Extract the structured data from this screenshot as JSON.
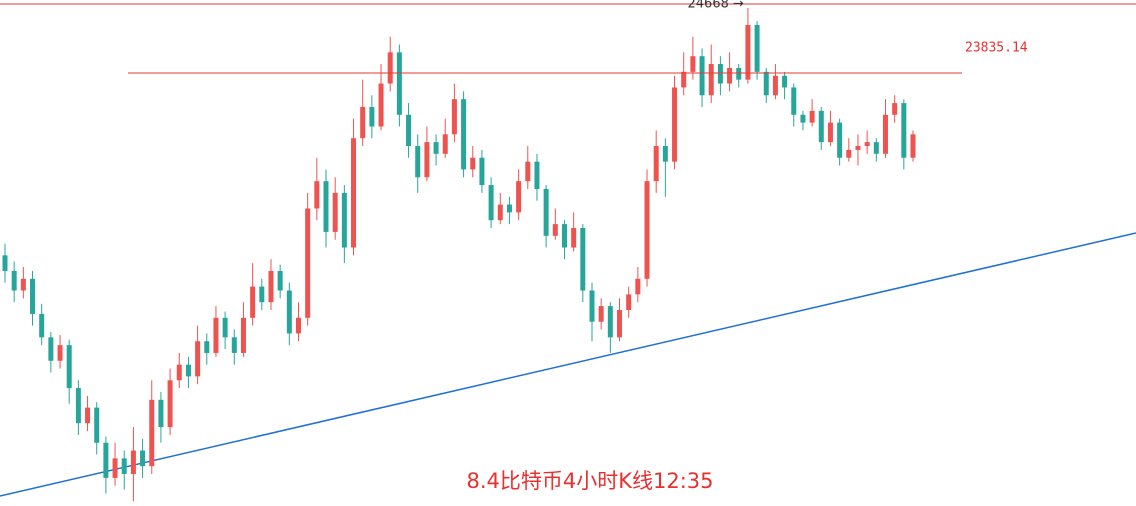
{
  "chart_data": {
    "type": "candlestick",
    "title": "8.4比特币4小时K线12:35",
    "ylim": [
      18290,
      24770
    ],
    "up_color": "#ef5350",
    "down_color": "#26a69a",
    "hline": {
      "value": 23835.14,
      "color": "#e53935"
    },
    "high_annotation": "24668 →",
    "open": [
      21500,
      21300,
      21050,
      21200,
      20750,
      20450,
      20150,
      20350,
      19800,
      19350,
      19550,
      19100,
      18650,
      18900,
      18700,
      19000,
      18800,
      19650,
      19300,
      19900,
      20100,
      19950,
      20400,
      20250,
      20700,
      20450,
      20250,
      20700,
      21100,
      20900,
      21300,
      21050,
      20500,
      20700,
      22100,
      22450,
      21800,
      22300,
      21600,
      23000,
      23400,
      23150,
      23700,
      24100,
      23300,
      22900,
      22500,
      22950,
      22800,
      23050,
      23500,
      22600,
      22750,
      22400,
      21950,
      22150,
      22050,
      22450,
      22700,
      22350,
      21750,
      21900,
      21600,
      21850,
      21050,
      20650,
      20850,
      20450,
      20800,
      21000,
      21200,
      22450,
      22900,
      22700,
      23650,
      23850,
      24050,
      23550,
      23950,
      23700,
      23900,
      23750,
      24450,
      23850,
      23550,
      23800,
      23650,
      23300,
      23200,
      23350,
      22950,
      23200,
      22750,
      22850,
      22900,
      22950,
      22800,
      23300,
      23450,
      22750
    ],
    "high": [
      21650,
      21420,
      21350,
      21300,
      20880,
      20520,
      20480,
      20420,
      19900,
      19700,
      19620,
      19180,
      19100,
      19000,
      19300,
      19150,
      19900,
      19750,
      20050,
      20250,
      20200,
      20600,
      20500,
      20850,
      20780,
      20550,
      20900,
      21400,
      21200,
      21450,
      21380,
      21150,
      20900,
      22300,
      22750,
      22600,
      22500,
      22400,
      23250,
      23750,
      23550,
      23950,
      24300,
      24200,
      23450,
      23050,
      23150,
      23050,
      23250,
      23700,
      23600,
      22900,
      22850,
      22500,
      22300,
      22250,
      22600,
      22900,
      22800,
      22400,
      22100,
      21950,
      22050,
      21900,
      21150,
      20950,
      20900,
      20950,
      21100,
      21350,
      22600,
      23100,
      23000,
      23800,
      24100,
      24300,
      24150,
      24200,
      24050,
      24100,
      23950,
      24668,
      24500,
      23900,
      23950,
      23850,
      23700,
      23350,
      23500,
      23400,
      23350,
      23250,
      23000,
      23050,
      23100,
      23000,
      23500,
      23550,
      23500,
      23100
    ],
    "low": [
      21150,
      20900,
      20950,
      20600,
      20350,
      20000,
      20050,
      19600,
      19200,
      19250,
      18950,
      18450,
      18550,
      18500,
      18350,
      18650,
      18700,
      19100,
      19200,
      19800,
      19800,
      19850,
      20100,
      20200,
      20300,
      20100,
      20200,
      20600,
      20800,
      20800,
      20950,
      20350,
      20400,
      20600,
      21950,
      21600,
      21700,
      21400,
      21500,
      22900,
      23000,
      23100,
      23600,
      23150,
      22750,
      22300,
      22450,
      22650,
      22750,
      22950,
      22500,
      22500,
      22300,
      21850,
      21900,
      21900,
      21950,
      22350,
      22200,
      21600,
      21700,
      21450,
      21550,
      20900,
      20400,
      20550,
      20250,
      20400,
      20700,
      20900,
      21100,
      22300,
      22250,
      22600,
      23550,
      23750,
      23400,
      23450,
      23550,
      23600,
      23650,
      23700,
      23750,
      23450,
      23500,
      23500,
      23150,
      23100,
      23150,
      22850,
      22900,
      22650,
      22700,
      22650,
      22800,
      22700,
      22750,
      23200,
      22600,
      22700
    ],
    "close": [
      21300,
      21050,
      21200,
      20750,
      20450,
      20150,
      20350,
      19800,
      19350,
      19550,
      19100,
      18650,
      18900,
      18700,
      19000,
      18800,
      19650,
      19300,
      19900,
      20100,
      19950,
      20400,
      20250,
      20700,
      20450,
      20250,
      20700,
      21100,
      20900,
      21300,
      21050,
      20500,
      20700,
      22100,
      22450,
      21800,
      22300,
      21600,
      23000,
      23400,
      23150,
      23700,
      24100,
      23300,
      22900,
      22500,
      22950,
      22800,
      23050,
      23500,
      22600,
      22750,
      22400,
      21950,
      22150,
      22050,
      22450,
      22700,
      22350,
      21750,
      21900,
      21600,
      21850,
      21050,
      20650,
      20850,
      20450,
      20800,
      21000,
      21200,
      22450,
      22900,
      22700,
      23650,
      23850,
      24050,
      23550,
      23950,
      23700,
      23900,
      23750,
      24450,
      23850,
      23550,
      23800,
      23650,
      23300,
      23200,
      23350,
      22950,
      23200,
      22750,
      22850,
      22900,
      22950,
      22800,
      23300,
      23450,
      22750,
      23050
    ]
  }
}
